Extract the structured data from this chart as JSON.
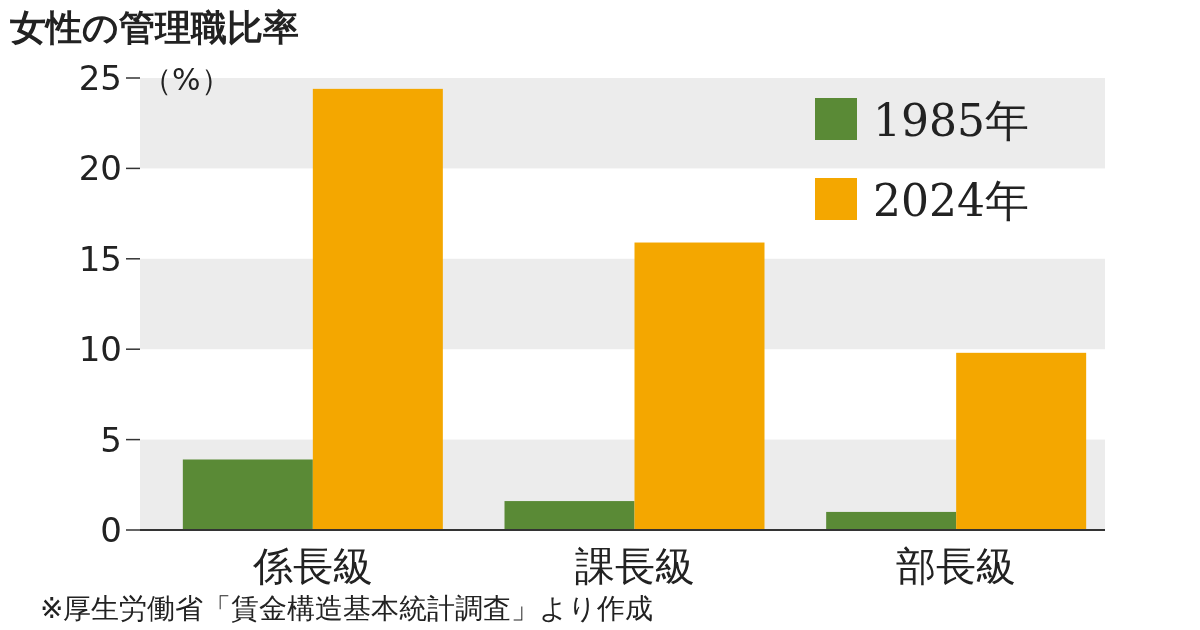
{
  "chart_data": {
    "type": "bar",
    "title": "女性の管理職比率",
    "ylabel": "（%）",
    "categories": [
      "係長級",
      "課長級",
      "部長級"
    ],
    "series": [
      {
        "name": "1985年",
        "color": "#5a8a36",
        "values": [
          3.9,
          1.6,
          1.0
        ]
      },
      {
        "name": "2024年",
        "color": "#f4a700",
        "values": [
          24.4,
          15.9,
          9.8
        ]
      }
    ],
    "ylim": [
      0,
      25
    ],
    "yticks": [
      0,
      5,
      10,
      15,
      20,
      25
    ],
    "grid": false,
    "legend": "top right",
    "bands": [
      {
        "axis": "y",
        "from": 0,
        "to": 5,
        "color": "#ececec"
      },
      {
        "axis": "y",
        "from": 10,
        "to": 15,
        "color": "#ececec"
      },
      {
        "axis": "y",
        "from": 20,
        "to": 25,
        "color": "#ececec"
      }
    ],
    "annotations": [
      "※厚生労働省「賃金構造基本統計調査」より作成"
    ]
  }
}
